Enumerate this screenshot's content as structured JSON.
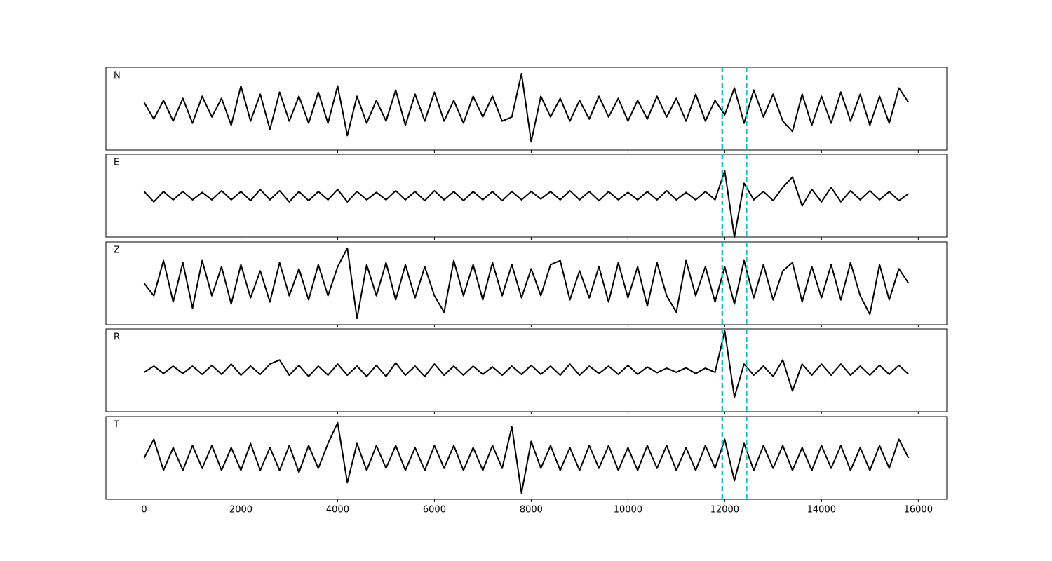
{
  "chart_data": {
    "type": "line",
    "x": [
      0,
      200,
      400,
      600,
      800,
      1000,
      1200,
      1400,
      1600,
      1800,
      2000,
      2200,
      2400,
      2600,
      2800,
      3000,
      3200,
      3400,
      3600,
      3800,
      4000,
      4200,
      4400,
      4600,
      4800,
      5000,
      5200,
      5400,
      5600,
      5800,
      6000,
      6200,
      6400,
      6600,
      6800,
      7000,
      7200,
      7400,
      7600,
      7800,
      8000,
      8200,
      8400,
      8600,
      8800,
      9000,
      9200,
      9400,
      9600,
      9800,
      10000,
      10200,
      10400,
      10600,
      10800,
      11000,
      11200,
      11400,
      11600,
      11800,
      12000,
      12200,
      12400,
      12600,
      12800,
      13000,
      13200,
      13400,
      13600,
      13800,
      14000,
      14200,
      14400,
      14600,
      14800,
      15000,
      15200,
      15400,
      15600,
      15800
    ],
    "series": [
      {
        "name": "N",
        "color": "#000000",
        "values": [
          0.15,
          -0.25,
          0.2,
          -0.3,
          0.25,
          -0.35,
          0.3,
          -0.2,
          0.25,
          -0.4,
          0.55,
          -0.3,
          0.35,
          -0.5,
          0.4,
          -0.3,
          0.3,
          -0.35,
          0.4,
          -0.35,
          0.55,
          -0.65,
          0.3,
          -0.35,
          0.2,
          -0.3,
          0.45,
          -0.4,
          0.35,
          -0.3,
          0.4,
          -0.3,
          0.2,
          -0.35,
          0.3,
          -0.2,
          0.3,
          -0.3,
          -0.2,
          0.85,
          -0.8,
          0.3,
          -0.2,
          0.25,
          -0.3,
          0.2,
          -0.25,
          0.3,
          -0.2,
          0.25,
          -0.3,
          0.2,
          -0.25,
          0.3,
          -0.2,
          0.25,
          -0.3,
          0.35,
          -0.3,
          0.2,
          -0.15,
          0.5,
          -0.35,
          0.45,
          -0.2,
          0.35,
          -0.3,
          -0.55,
          0.35,
          -0.4,
          0.3,
          -0.35,
          0.4,
          -0.3,
          0.35,
          -0.4,
          0.3,
          -0.35,
          0.5,
          0.15
        ]
      },
      {
        "name": "E",
        "color": "#000000",
        "values": [
          0.1,
          -0.15,
          0.1,
          -0.1,
          0.1,
          -0.1,
          0.08,
          -0.1,
          0.12,
          -0.1,
          0.1,
          -0.12,
          0.15,
          -0.1,
          0.12,
          -0.15,
          0.1,
          -0.12,
          0.1,
          -0.1,
          0.15,
          -0.15,
          0.1,
          -0.1,
          0.08,
          -0.1,
          0.12,
          -0.1,
          0.1,
          -0.12,
          0.12,
          -0.1,
          0.1,
          -0.12,
          0.1,
          -0.1,
          0.1,
          -0.12,
          0.1,
          -0.1,
          0.1,
          -0.08,
          0.1,
          -0.1,
          0.12,
          -0.1,
          0.1,
          -0.12,
          0.1,
          -0.1,
          0.08,
          -0.1,
          0.1,
          -0.1,
          0.12,
          -0.1,
          0.08,
          -0.1,
          0.1,
          -0.1,
          0.6,
          -1.0,
          0.3,
          -0.1,
          0.1,
          -0.12,
          0.2,
          0.45,
          -0.25,
          0.15,
          -0.15,
          0.2,
          -0.15,
          0.12,
          -0.1,
          0.12,
          -0.1,
          0.1,
          -0.12,
          0.05
        ]
      },
      {
        "name": "Z",
        "color": "#000000",
        "values": [
          0.0,
          -0.3,
          0.55,
          -0.45,
          0.5,
          -0.6,
          0.55,
          -0.3,
          0.4,
          -0.5,
          0.45,
          -0.35,
          0.3,
          -0.45,
          0.5,
          -0.3,
          0.35,
          -0.4,
          0.45,
          -0.3,
          0.4,
          0.85,
          -0.85,
          0.45,
          -0.3,
          0.5,
          -0.4,
          0.45,
          -0.35,
          0.4,
          -0.3,
          -0.7,
          0.55,
          -0.3,
          0.45,
          -0.4,
          0.5,
          -0.3,
          0.45,
          -0.35,
          0.35,
          -0.3,
          0.45,
          0.55,
          -0.4,
          0.3,
          -0.35,
          0.4,
          -0.45,
          0.5,
          -0.35,
          0.4,
          -0.55,
          0.5,
          -0.3,
          -0.7,
          0.55,
          -0.3,
          0.4,
          -0.45,
          0.4,
          -0.5,
          0.55,
          -0.35,
          0.45,
          -0.4,
          0.3,
          0.5,
          -0.45,
          0.4,
          -0.35,
          0.45,
          -0.4,
          0.5,
          -0.3,
          -0.75,
          0.45,
          -0.4,
          0.35,
          0.0
        ]
      },
      {
        "name": "R",
        "color": "#000000",
        "values": [
          -0.05,
          0.1,
          -0.08,
          0.1,
          -0.08,
          0.1,
          -0.1,
          0.12,
          -0.1,
          0.15,
          -0.12,
          0.1,
          -0.1,
          0.15,
          0.25,
          -0.12,
          0.12,
          -0.15,
          0.1,
          -0.12,
          0.15,
          -0.12,
          0.1,
          -0.15,
          0.12,
          -0.15,
          0.18,
          -0.12,
          0.1,
          -0.15,
          0.15,
          -0.12,
          0.1,
          -0.12,
          0.1,
          -0.1,
          0.08,
          -0.12,
          0.1,
          -0.1,
          0.12,
          -0.1,
          0.1,
          -0.12,
          0.15,
          -0.12,
          0.1,
          -0.08,
          0.1,
          -0.1,
          0.12,
          -0.1,
          0.08,
          -0.06,
          0.05,
          -0.05,
          0.06,
          -0.08,
          0.05,
          -0.05,
          0.95,
          -0.65,
          0.15,
          -0.12,
          0.1,
          -0.15,
          0.25,
          -0.5,
          0.15,
          -0.12,
          0.15,
          -0.12,
          0.15,
          -0.12,
          0.1,
          -0.12,
          0.12,
          -0.1,
          0.12,
          -0.1
        ]
      },
      {
        "name": "T",
        "color": "#000000",
        "values": [
          0.0,
          0.45,
          -0.3,
          0.25,
          -0.3,
          0.3,
          -0.25,
          0.3,
          -0.3,
          0.25,
          -0.3,
          0.35,
          -0.3,
          0.25,
          -0.3,
          0.3,
          -0.35,
          0.3,
          -0.25,
          0.35,
          0.85,
          -0.6,
          0.35,
          -0.3,
          0.3,
          -0.25,
          0.3,
          -0.3,
          0.25,
          -0.3,
          0.3,
          -0.25,
          0.3,
          -0.3,
          0.25,
          -0.3,
          0.3,
          -0.25,
          0.75,
          -0.85,
          0.4,
          -0.25,
          0.3,
          -0.3,
          0.25,
          -0.3,
          0.3,
          -0.25,
          0.3,
          -0.3,
          0.25,
          -0.3,
          0.3,
          -0.25,
          0.3,
          -0.3,
          0.25,
          -0.3,
          0.3,
          -0.25,
          0.45,
          -0.55,
          0.35,
          -0.3,
          0.3,
          -0.25,
          0.3,
          -0.3,
          0.25,
          -0.3,
          0.3,
          -0.25,
          0.3,
          -0.3,
          0.25,
          -0.3,
          0.3,
          -0.25,
          0.45,
          0.0
        ]
      }
    ],
    "xlim": [
      -790,
      16590
    ],
    "xticks": [
      0,
      2000,
      4000,
      6000,
      8000,
      10000,
      12000,
      14000,
      16000
    ],
    "ylim": [
      -1,
      1
    ],
    "vlines": [
      11950,
      12450
    ],
    "vline_color": "#17bfbf"
  }
}
